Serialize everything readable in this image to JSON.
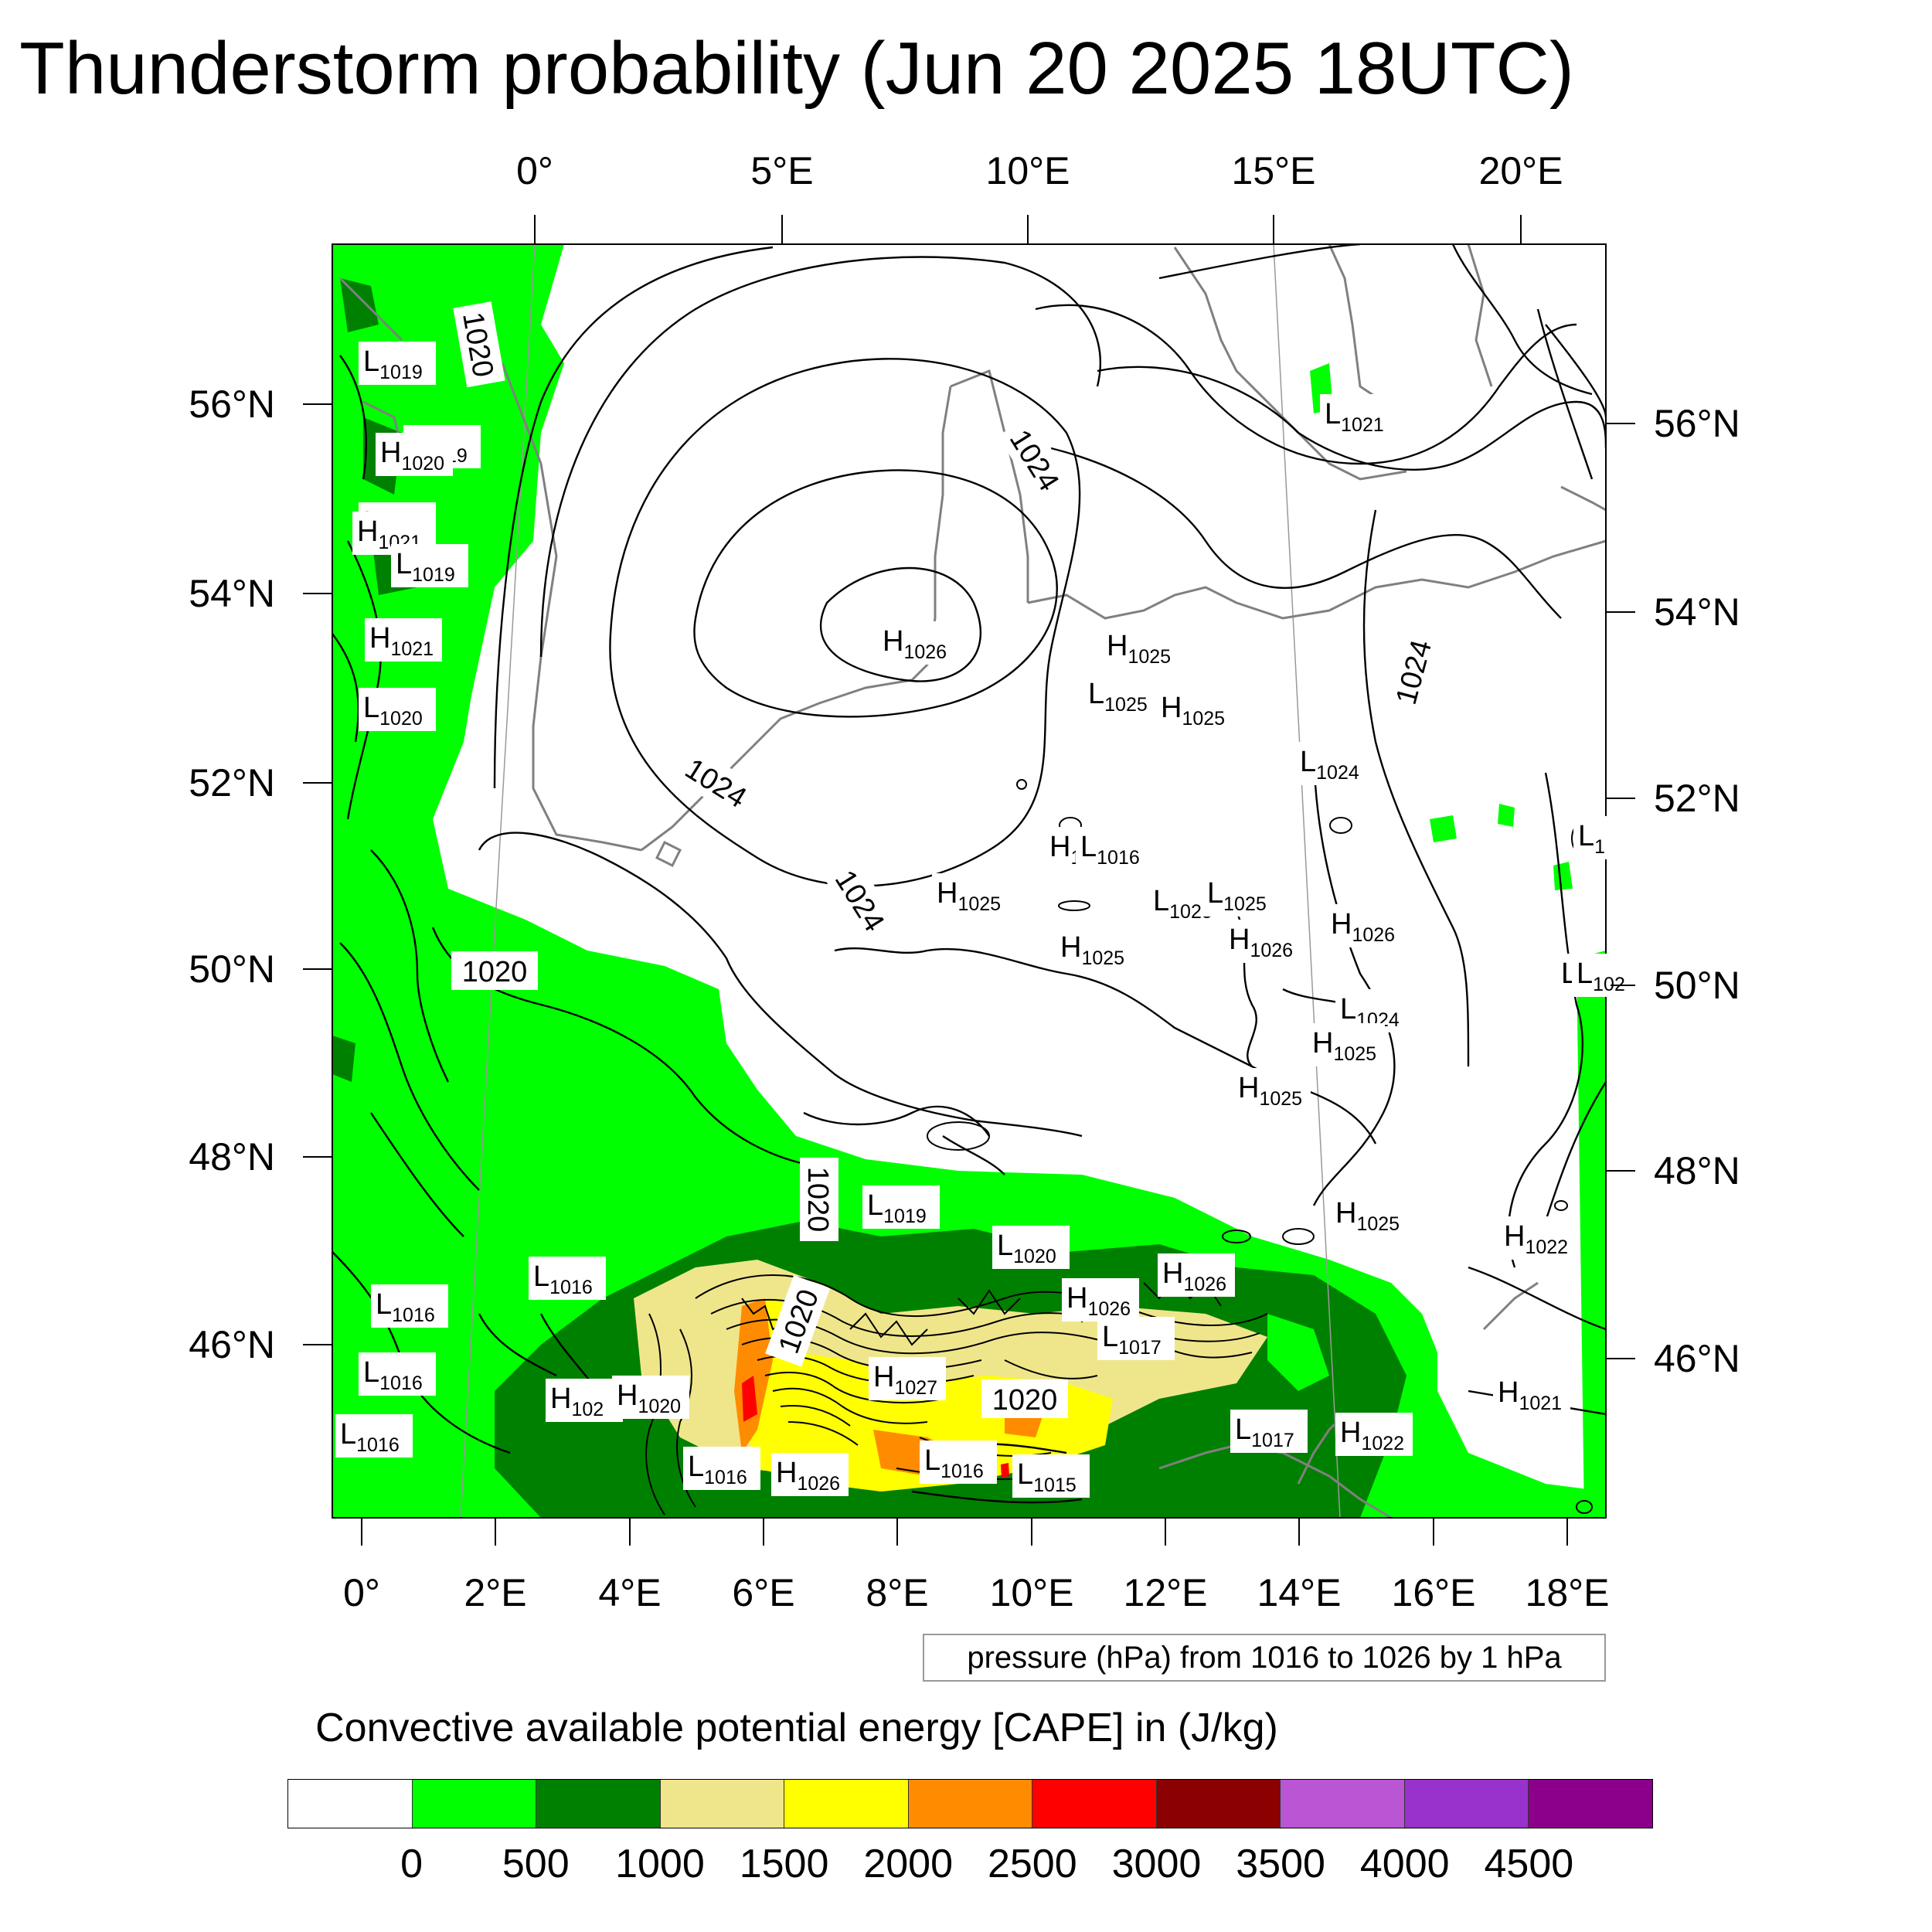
{
  "title": "Thunderstorm probability (Jun 20 2025 18UTC)",
  "top_ticks": [
    "0°",
    "5°E",
    "10°E",
    "15°E",
    "20°E"
  ],
  "bottom_ticks": [
    "0°",
    "2°E",
    "4°E",
    "6°E",
    "8°E",
    "10°E",
    "12°E",
    "14°E",
    "16°E",
    "18°E"
  ],
  "left_ticks": [
    "56°N",
    "54°N",
    "52°N",
    "50°N",
    "48°N",
    "46°N"
  ],
  "right_ticks": [
    "56°N",
    "54°N",
    "52°N",
    "50°N",
    "48°N",
    "46°N"
  ],
  "pressure_note": "pressure (hPa) from 1016 to 1026 by 1 hPa",
  "colorbar": {
    "title": "Convective available potential energy [CAPE] in (J/kg)",
    "labels": [
      "0",
      "500",
      "1000",
      "1500",
      "2000",
      "2500",
      "3000",
      "3500",
      "4000",
      "4500"
    ],
    "colors": [
      "#ffffff",
      "#00ff00",
      "#008000",
      "#efe68c",
      "#ffff00",
      "#ff8c00",
      "#ff0000",
      "#8b0000",
      "#ba55d3",
      "#9932cc",
      "#8b008b"
    ]
  },
  "contour_labels": [
    "1020",
    "1020",
    "1024",
    "1024",
    "1024",
    "1024",
    "1020",
    "1020",
    "1020"
  ],
  "pressure_centers": [
    {
      "type": "L",
      "value": "1019"
    },
    {
      "type": "L",
      "value": "1019"
    },
    {
      "type": "H",
      "value": "1020"
    },
    {
      "type": "L",
      "value": "1019"
    },
    {
      "type": "H",
      "value": "1021"
    },
    {
      "type": "L",
      "value": "1019"
    },
    {
      "type": "H",
      "value": "1021"
    },
    {
      "type": "L",
      "value": "1020"
    },
    {
      "type": "H",
      "value": "1026"
    },
    {
      "type": "H",
      "value": "1025"
    },
    {
      "type": "L",
      "value": "1025"
    },
    {
      "type": "H",
      "value": "1025"
    },
    {
      "type": "L",
      "value": "1021"
    },
    {
      "type": "L",
      "value": "1024"
    },
    {
      "type": "H",
      "value": "1026"
    },
    {
      "type": "H",
      "value": "1025"
    },
    {
      "type": "L",
      "value": "1025"
    },
    {
      "type": "L",
      "value": "1025"
    },
    {
      "type": "H",
      "value": "1025"
    },
    {
      "type": "H",
      "value": "1026"
    },
    {
      "type": "H",
      "value": "1026"
    },
    {
      "type": "L",
      "value": "1024"
    },
    {
      "type": "H",
      "value": "1025"
    },
    {
      "type": "H",
      "value": "1025"
    },
    {
      "type": "L",
      "value": "1016"
    },
    {
      "type": "L",
      "value": "1019"
    },
    {
      "type": "L",
      "value": "1020"
    },
    {
      "type": "H",
      "value": "1025"
    },
    {
      "type": "H",
      "value": "1022"
    },
    {
      "type": "L",
      "value": "1016"
    },
    {
      "type": "H",
      "value": "1026"
    },
    {
      "type": "H",
      "value": "1026"
    },
    {
      "type": "L",
      "value": "1016"
    },
    {
      "type": "L",
      "value": "1017"
    },
    {
      "type": "L",
      "value": "1016"
    },
    {
      "type": "H",
      "value": "102"
    },
    {
      "type": "H",
      "value": "1020"
    },
    {
      "type": "H",
      "value": "1027"
    },
    {
      "type": "H",
      "value": "1021"
    },
    {
      "type": "L",
      "value": "1017"
    },
    {
      "type": "H",
      "value": "1022"
    },
    {
      "type": "L",
      "value": "1016"
    },
    {
      "type": "L",
      "value": "1016"
    },
    {
      "type": "H",
      "value": "1026"
    },
    {
      "type": "L",
      "value": "1016"
    },
    {
      "type": "L",
      "value": "1015"
    },
    {
      "type": "L",
      "value": "1"
    },
    {
      "type": "L",
      "value": "102"
    },
    {
      "type": "L",
      "value": "102"
    }
  ]
}
